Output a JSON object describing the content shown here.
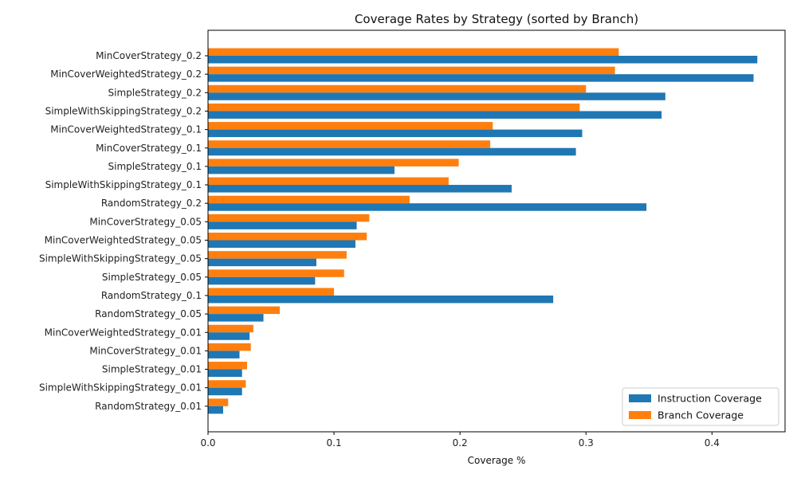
{
  "chart_data": {
    "type": "bar",
    "orientation": "horizontal",
    "title": "Coverage Rates by Strategy (sorted by Branch)",
    "xlabel": "Coverage %",
    "ylabel": "",
    "xlim": [
      0,
      0.458
    ],
    "xticks": [
      0.0,
      0.1,
      0.2,
      0.3,
      0.4
    ],
    "xtick_labels": [
      "0.0",
      "0.1",
      "0.2",
      "0.3",
      "0.4"
    ],
    "grid": false,
    "legend_position": "bottom-right",
    "categories": [
      "MinCoverStrategy_0.2",
      "MinCoverWeightedStrategy_0.2",
      "SimpleStrategy_0.2",
      "SimpleWithSkippingStrategy_0.2",
      "MinCoverWeightedStrategy_0.1",
      "MinCoverStrategy_0.1",
      "SimpleStrategy_0.1",
      "SimpleWithSkippingStrategy_0.1",
      "RandomStrategy_0.2",
      "MinCoverStrategy_0.05",
      "MinCoverWeightedStrategy_0.05",
      "SimpleWithSkippingStrategy_0.05",
      "SimpleStrategy_0.05",
      "RandomStrategy_0.1",
      "RandomStrategy_0.05",
      "MinCoverWeightedStrategy_0.01",
      "MinCoverStrategy_0.01",
      "SimpleStrategy_0.01",
      "SimpleWithSkippingStrategy_0.01",
      "RandomStrategy_0.01"
    ],
    "series": [
      {
        "name": "Instruction Coverage",
        "color": "#1f77b4",
        "values": [
          0.436,
          0.433,
          0.363,
          0.36,
          0.297,
          0.292,
          0.148,
          0.241,
          0.348,
          0.118,
          0.117,
          0.086,
          0.085,
          0.274,
          0.044,
          0.033,
          0.025,
          0.027,
          0.027,
          0.012
        ]
      },
      {
        "name": "Branch Coverage",
        "color": "#ff7f0e",
        "values": [
          0.326,
          0.323,
          0.3,
          0.295,
          0.226,
          0.224,
          0.199,
          0.191,
          0.16,
          0.128,
          0.126,
          0.11,
          0.108,
          0.1,
          0.057,
          0.036,
          0.034,
          0.031,
          0.03,
          0.016
        ]
      }
    ]
  }
}
